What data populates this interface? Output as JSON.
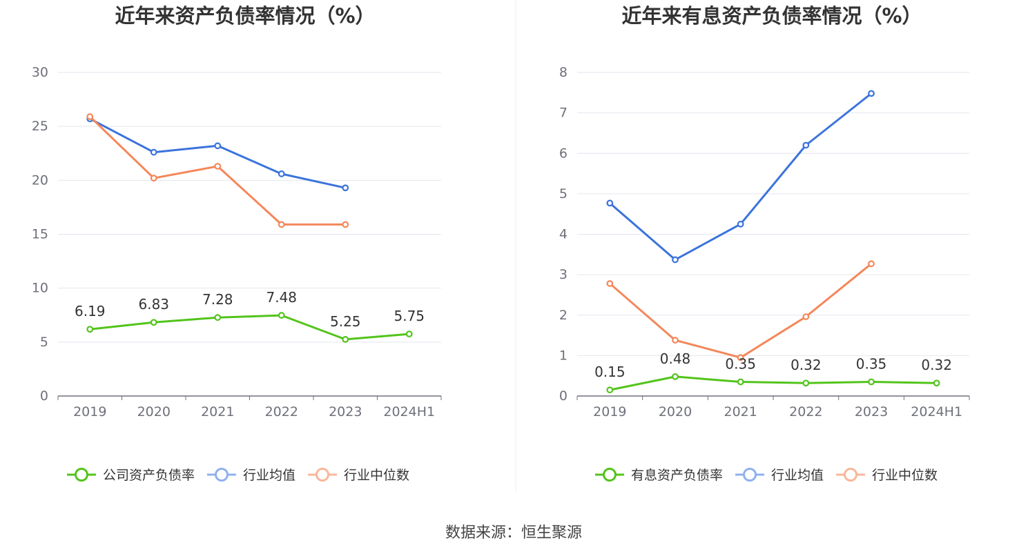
{
  "source": "数据来源：恒生聚源",
  "colors": {
    "company": "#52c41a",
    "industry_avg": "#3a73dc",
    "industry_median": "#f4875a",
    "legend_avg": "#8fb0ef",
    "legend_median": "#f8b69a",
    "grid": "#e3e6ef",
    "axis": "#6e7079"
  },
  "chart_data": [
    {
      "type": "line",
      "title": "近年来资产负债率情况（%）",
      "categories": [
        "2019",
        "2020",
        "2021",
        "2022",
        "2023",
        "2024H1"
      ],
      "ylim": [
        0,
        30
      ],
      "yticks": [
        0,
        5,
        10,
        15,
        20,
        25,
        30
      ],
      "series": [
        {
          "name": "公司资产负债率",
          "color_key": "company",
          "legend_key": "company",
          "labeled": true,
          "values": [
            6.19,
            6.83,
            7.28,
            7.48,
            5.25,
            5.75
          ],
          "labels": [
            "6.19",
            "6.83",
            "7.28",
            "7.48",
            "5.25",
            "5.75"
          ]
        },
        {
          "name": "行业均值",
          "color_key": "industry_avg",
          "legend_key": "legend_avg",
          "labeled": false,
          "values": [
            25.7,
            22.6,
            23.2,
            20.6,
            19.3,
            null
          ]
        },
        {
          "name": "行业中位数",
          "color_key": "industry_median",
          "legend_key": "legend_median",
          "labeled": false,
          "values": [
            25.9,
            20.2,
            21.3,
            15.9,
            15.9,
            null
          ]
        }
      ]
    },
    {
      "type": "line",
      "title": "近年来有息资产负债率情况（%）",
      "categories": [
        "2019",
        "2020",
        "2021",
        "2022",
        "2023",
        "2024H1"
      ],
      "ylim": [
        0,
        8
      ],
      "yticks": [
        0,
        1,
        2,
        3,
        4,
        5,
        6,
        7,
        8
      ],
      "series": [
        {
          "name": "有息资产负债率",
          "color_key": "company",
          "legend_key": "company",
          "labeled": true,
          "values": [
            0.15,
            0.48,
            0.35,
            0.32,
            0.35,
            0.32
          ],
          "labels": [
            "0.15",
            "0.48",
            "0.35",
            "0.32",
            "0.35",
            "0.32"
          ]
        },
        {
          "name": "行业均值",
          "color_key": "industry_avg",
          "legend_key": "legend_avg",
          "labeled": false,
          "values": [
            4.77,
            3.37,
            4.25,
            6.2,
            7.48,
            null
          ]
        },
        {
          "name": "行业中位数",
          "color_key": "industry_median",
          "legend_key": "legend_median",
          "labeled": false,
          "values": [
            2.78,
            1.38,
            0.95,
            1.96,
            3.27,
            null
          ]
        }
      ]
    }
  ]
}
